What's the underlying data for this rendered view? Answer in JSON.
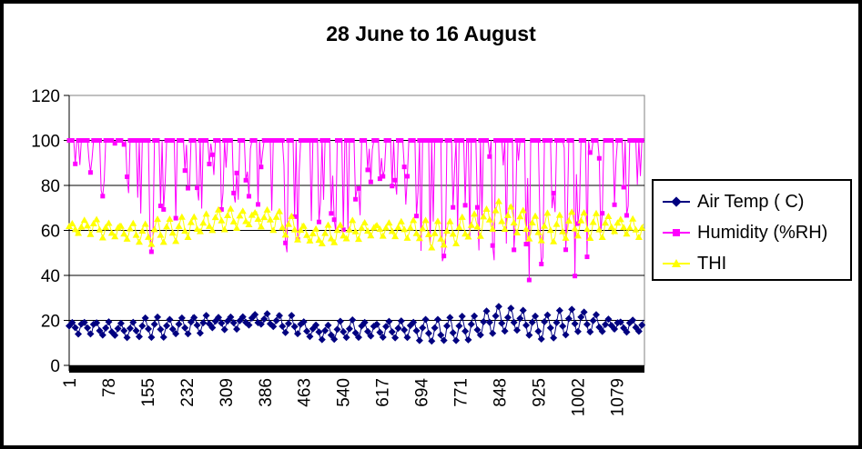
{
  "chart_data": {
    "type": "line",
    "title": "28 June to 16 August",
    "xlabel": "",
    "ylabel": "",
    "ylim": [
      0,
      120
    ],
    "yticks": [
      "0",
      "20",
      "40",
      "60",
      "80",
      "100",
      "120"
    ],
    "xlim": [
      1,
      1134
    ],
    "xticks": [
      "1",
      "78",
      "155",
      "232",
      "309",
      "386",
      "463",
      "540",
      "617",
      "694",
      "771",
      "848",
      "925",
      "1002",
      "1079"
    ],
    "grid": true,
    "legend_position": "right",
    "colors": {
      "air": "#000080",
      "humidity": "#ff00ff",
      "thi": "#ffff00"
    },
    "series": [
      {
        "name": "Air Temp ( C)",
        "marker": "diamond",
        "color": "#000080",
        "points_x": [
          1,
          40,
          80,
          120,
          160,
          200,
          240,
          280,
          320,
          360,
          400,
          440,
          480,
          520,
          560,
          600,
          640,
          680,
          720,
          760,
          800,
          840,
          880,
          920,
          960,
          1000,
          1040,
          1080,
          1134
        ],
        "center": [
          17,
          17,
          16,
          16,
          17,
          17,
          18,
          19,
          19,
          20,
          20,
          18,
          15,
          15,
          16,
          16,
          16,
          16,
          15,
          16,
          17,
          21,
          20,
          17,
          18,
          20,
          18,
          18,
          17
        ],
        "amplitude": [
          2,
          3,
          3,
          3,
          4,
          4,
          4,
          3,
          3,
          2,
          3,
          4,
          2,
          4,
          4,
          3,
          3,
          4,
          5,
          5,
          5,
          6,
          5,
          5,
          6,
          5,
          4,
          2,
          3
        ]
      },
      {
        "name": "Humidity (%RH)",
        "marker": "square",
        "color": "#ff00ff",
        "max": 100,
        "dips_x": [
          1,
          40,
          80,
          120,
          160,
          200,
          240,
          280,
          320,
          360,
          400,
          440,
          480,
          520,
          560,
          600,
          640,
          680,
          720,
          760,
          800,
          840,
          880,
          920,
          960,
          1000,
          1040,
          1080,
          1134
        ],
        "dip_min": [
          80,
          84,
          68,
          72,
          48,
          62,
          70,
          66,
          72,
          74,
          66,
          44,
          64,
          58,
          60,
          74,
          70,
          50,
          40,
          42,
          52,
          46,
          44,
          32,
          40,
          36,
          56,
          64,
          64
        ]
      },
      {
        "name": "THI",
        "marker": "triangle",
        "color": "#ffff00",
        "points_x": [
          1,
          40,
          80,
          120,
          160,
          200,
          240,
          280,
          320,
          360,
          400,
          440,
          480,
          520,
          560,
          600,
          640,
          680,
          720,
          760,
          800,
          840,
          880,
          920,
          960,
          1000,
          1040,
          1080,
          1134
        ],
        "center": [
          61,
          62,
          60,
          60,
          59,
          60,
          62,
          64,
          65,
          66,
          65,
          62,
          57,
          58,
          60,
          60,
          61,
          61,
          58,
          59,
          62,
          67,
          65,
          61,
          61,
          63,
          62,
          62,
          60
        ],
        "amplitude": [
          3,
          3,
          3,
          3,
          5,
          5,
          4,
          4,
          4,
          3,
          4,
          5,
          3,
          4,
          4,
          3,
          3,
          4,
          6,
          5,
          5,
          6,
          6,
          6,
          6,
          5,
          5,
          3,
          4
        ]
      }
    ]
  }
}
